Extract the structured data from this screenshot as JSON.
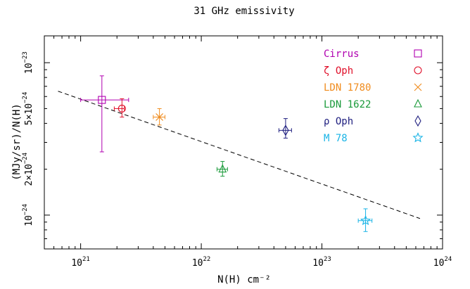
{
  "chart_data": {
    "type": "scatter",
    "title": "31 GHz emissivity",
    "xlabel": "N(H) cm⁻²",
    "ylabel": "(MJy/sr)/N(H)",
    "x_scale": "log",
    "y_scale": "log",
    "xlim": [
      5e+20,
      1e+24
    ],
    "ylim": [
      6e-25,
      1.5e-23
    ],
    "x_ticks": [
      {
        "value": 1e+21,
        "base": "10",
        "exp": "21"
      },
      {
        "value": 1e+22,
        "base": "10",
        "exp": "22"
      },
      {
        "value": 1e+23,
        "base": "10",
        "exp": "23"
      },
      {
        "value": 1e+24,
        "base": "10",
        "exp": "24"
      }
    ],
    "y_ticks": [
      {
        "value": 1e-24,
        "base": "10",
        "exp": "−24"
      },
      {
        "value": 2e-24,
        "base": "2×10",
        "exp": "−24"
      },
      {
        "value": 5e-24,
        "base": "5×10",
        "exp": "−24"
      },
      {
        "value": 1e-23,
        "base": "10",
        "exp": "−23"
      }
    ],
    "fit_line": {
      "x": [
        6.5e+20,
        6.5e+23
      ],
      "y": [
        6.5e-24,
        9.5e-25
      ],
      "style": "dashed"
    },
    "legend_position": "top-right",
    "series": [
      {
        "name": "Cirrus",
        "marker": "square",
        "color": "#b000b0",
        "x": 1.5e+21,
        "y": 5.7e-24,
        "xerr": [
          1e+21,
          2.5e+21
        ],
        "yerr": [
          2.6e-24,
          8.2e-24
        ]
      },
      {
        "name": "ζ Oph",
        "marker": "circle",
        "color": "#e0102a",
        "x": 2.2e+21,
        "y": 5e-24,
        "xerr": [
          1.9e+21,
          2.3e+21
        ],
        "yerr": [
          4.4e-24,
          5.8e-24
        ]
      },
      {
        "name": "LDN 1780",
        "marker": "cross",
        "color": "#f08c1e",
        "x": 4.5e+21,
        "y": 4.4e-24,
        "xerr": [
          4e+21,
          5e+21
        ],
        "yerr": [
          3.9e-24,
          5e-24
        ]
      },
      {
        "name": "LDN 1622",
        "marker": "triangle",
        "color": "#1a9a3a",
        "x": 1.5e+22,
        "y": 2e-24,
        "xerr": [
          1.35e+22,
          1.65e+22
        ],
        "yerr": [
          1.8e-24,
          2.25e-24
        ]
      },
      {
        "name": "ρ Oph",
        "marker": "diamond",
        "color": "#202080",
        "x": 5e+22,
        "y": 3.6e-24,
        "xerr": [
          4.4e+22,
          5.6e+22
        ],
        "yerr": [
          3.2e-24,
          4.3e-24
        ]
      },
      {
        "name": "M 78",
        "marker": "star",
        "color": "#19b4e6",
        "x": 2.3e+23,
        "y": 9.2e-25,
        "xerr": [
          2e+23,
          2.6e+23
        ],
        "yerr": [
          7.8e-25,
          1.1e-24
        ]
      }
    ]
  }
}
